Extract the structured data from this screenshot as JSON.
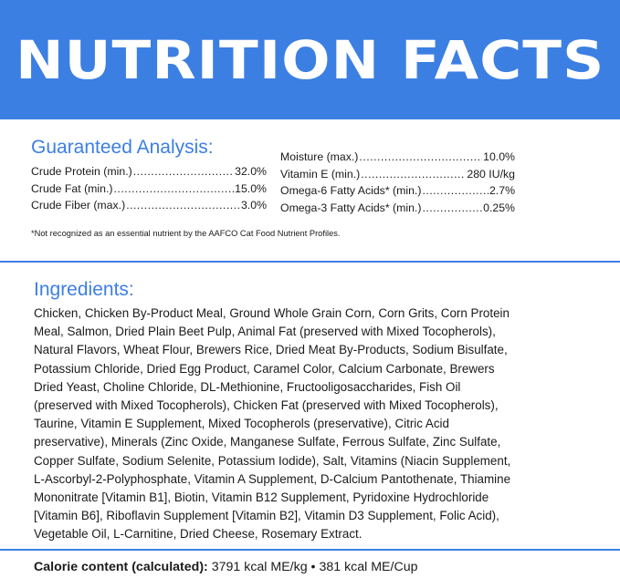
{
  "header": {
    "title": "NUTRITION FACTS"
  },
  "guaranteed_analysis": {
    "heading": "Guaranteed Analysis:",
    "left": [
      {
        "label": "Crude Protein (min.)",
        "value": "32.0%"
      },
      {
        "label": "Crude Fat (min.)",
        "value": "15.0%"
      },
      {
        "label": "Crude Fiber (max.)",
        "value": "3.0%"
      }
    ],
    "right": [
      {
        "label": "Moisture (max.)",
        "value": "10.0%"
      },
      {
        "label": "Vitamin E (min.)",
        "value": "280 IU/kg"
      },
      {
        "label": "Omega-6 Fatty Acids* (min.)",
        "value": "2.7%"
      },
      {
        "label": "Omega-3 Fatty Acids* (min.)",
        "value": "0.25%"
      }
    ],
    "footnote": "*Not recognized as an essential nutrient by the AAFCO Cat Food Nutrient Profiles."
  },
  "ingredients": {
    "heading": "Ingredients:",
    "lines": [
      "Chicken, Chicken By-Product Meal, Ground Whole Grain Corn, Corn Grits, Corn Protein",
      "Meal, Salmon, Dried Plain Beet Pulp, Animal Fat (preserved with Mixed Tocopherols),",
      "Natural Flavors, Wheat Flour, Brewers Rice, Dried Meat By-Products, Sodium Bisulfate,",
      "Potassium Chloride, Dried Egg Product, Caramel Color, Calcium Carbonate, Brewers",
      "Dried Yeast, Choline Chloride, DL-Methionine, Fructooligosaccharides, Fish Oil",
      "(preserved with Mixed Tocopherols), Chicken Fat (preserved with Mixed Tocopherols),",
      "Taurine, Vitamin E Supplement, Mixed Tocopherols (preservative), Citric Acid",
      "preservative), Minerals (Zinc Oxide, Manganese Sulfate, Ferrous Sulfate, Zinc Sulfate,",
      "Copper Sulfate, Sodium Selenite, Potassium Iodide), Salt, Vitamins (Niacin Supplement,",
      "L-Ascorbyl-2-Polyphosphate, Vitamin A Supplement, D-Calcium Pantothenate, Thiamine",
      "Mononitrate [Vitamin B1], Biotin, Vitamin B12 Supplement, Pyridoxine Hydrochloride",
      "[Vitamin B6], Riboflavin Supplement [Vitamin B2], Vitamin D3 Supplement, Folic Acid),",
      "Vegetable Oil, L-Carnitine, Dried Cheese, Rosemary Extract."
    ]
  },
  "calorie": {
    "label": "Calorie content (calculated):",
    "value": " 3791 kcal ME/kg • 381 kcal ME/Cup"
  },
  "colors": {
    "accent": "#3c7fe3",
    "text": "#1a1a1a",
    "background": "#ffffff"
  }
}
